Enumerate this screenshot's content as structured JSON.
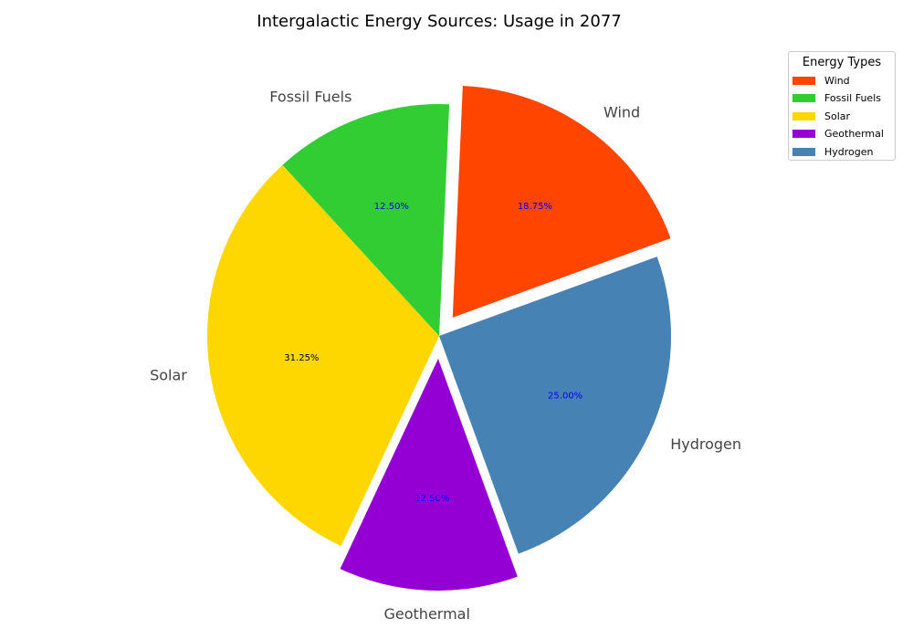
{
  "chart_data": {
    "type": "pie",
    "title": "Intergalactic Energy Sources: Usage in 2077",
    "categories": [
      "Wind",
      "Fossil Fuels",
      "Solar",
      "Geothermal",
      "Hydrogen"
    ],
    "values": [
      18.75,
      12.5,
      31.25,
      12.5,
      25.0
    ],
    "percent_labels": [
      "18.75%",
      "12.50%",
      "31.25%",
      "12.50%",
      "25.00%"
    ],
    "colors": [
      "#FF4500",
      "#32CD32",
      "#FFD700",
      "#9400D3",
      "#4682B4"
    ],
    "pct_label_colors": [
      "#0000ff",
      "#0000ff",
      "#000000",
      "#0000ff",
      "#0000ff"
    ],
    "exploded": [
      true,
      false,
      false,
      true,
      false
    ],
    "legend_title": "Energy Types",
    "legend_position": "top-right"
  }
}
